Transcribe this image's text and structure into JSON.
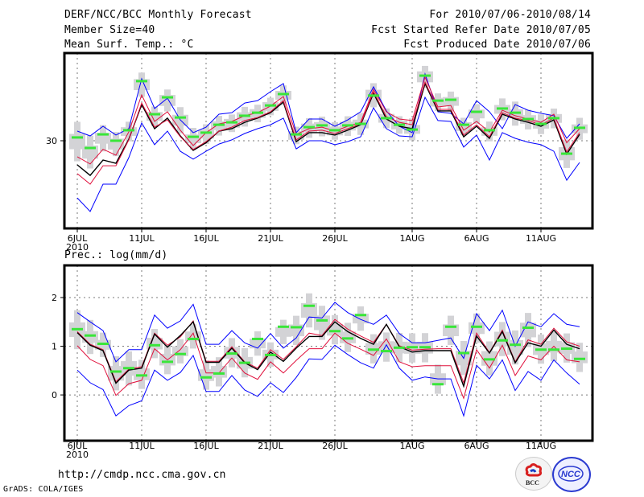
{
  "header": {
    "title": "DERF/NCC/BCC Monthly Forecast",
    "member_size": "Member Size=40",
    "var1_label": "Mean Surf. Temp.: °C",
    "period": "For 2010/07/06-2010/08/14",
    "started_date": "Fcst Started Refer Date 2010/07/05",
    "produced_date": "Fcst Produced Date 2010/07/06"
  },
  "footer": {
    "url": "http://cmdp.ncc.cma.gov.cn",
    "credit": "GrADS: COLA/IGES",
    "logos": [
      "BCC",
      "NCC"
    ]
  },
  "colors": {
    "envelope_outer": "#0000ff",
    "envelope_inner": "#e0103c",
    "ensemble_mean": "#000000",
    "observation": "#39e639",
    "spread_box": "#d3d3d6",
    "grid": "#7a7a7a"
  },
  "chart_data": [
    {
      "type": "line",
      "title": "Mean Surf. Temp.: °C",
      "xlabel": "",
      "ylabel": "°C",
      "x_tick_labels": [
        "6JUL",
        "11JUL",
        "16JUL",
        "21JUL",
        "26JUL",
        "1AUG",
        "6AUG",
        "11AUG"
      ],
      "x_tick_day_index": [
        0,
        5,
        10,
        15,
        20,
        26,
        31,
        36
      ],
      "x_year_label": "2010",
      "y_tick_labels": [
        "30"
      ],
      "y_ticks": [
        30
      ],
      "ylim": [
        26,
        34
      ],
      "grid": true,
      "n_days": 40,
      "series": [
        {
          "name": "max",
          "role": "envelope_outer_upper",
          "values": [
            30.44,
            30.22,
            30.66,
            30.26,
            30.55,
            32.83,
            31.47,
            31.94,
            30.95,
            30.37,
            30.62,
            31.21,
            31.28,
            31.72,
            31.83,
            32.24,
            32.61,
            30.37,
            30.99,
            30.99,
            30.66,
            30.95,
            31.32,
            32.46,
            31.36,
            30.66,
            30.37,
            33.05,
            31.32,
            31.25,
            30.77,
            31.83,
            31.32,
            30.55,
            31.65,
            31.39,
            31.25,
            31.14,
            30.11,
            30.77
          ]
        },
        {
          "name": "upper_quantile",
          "role": "envelope_inner_upper",
          "values": [
            29.27,
            28.94,
            29.61,
            29.34,
            30.4,
            32.09,
            30.88,
            31.32,
            30.48,
            29.78,
            30.37,
            30.77,
            30.88,
            31.14,
            31.28,
            31.58,
            32.02,
            30.29,
            30.55,
            30.62,
            30.44,
            30.66,
            30.84,
            32.35,
            31.32,
            30.99,
            30.92,
            32.9,
            31.54,
            31.61,
            30.48,
            30.88,
            30.4,
            31.39,
            31.14,
            30.99,
            30.84,
            31.21,
            29.91,
            30.55
          ]
        },
        {
          "name": "ensemble_mean",
          "role": "mean",
          "values": [
            28.9,
            28.42,
            29.12,
            28.97,
            30.07,
            31.65,
            30.55,
            31.03,
            30.22,
            29.56,
            29.91,
            30.44,
            30.55,
            30.84,
            31.03,
            31.28,
            31.76,
            29.96,
            30.37,
            30.37,
            30.26,
            30.48,
            30.73,
            32.17,
            30.99,
            30.66,
            30.55,
            32.61,
            31.36,
            31.36,
            30.18,
            30.66,
            30.11,
            31.21,
            30.99,
            30.84,
            30.66,
            30.95,
            29.39,
            30.29
          ]
        },
        {
          "name": "lower_quantile",
          "role": "envelope_inner_lower",
          "values": [
            28.5,
            28.02,
            28.86,
            28.86,
            30.04,
            31.72,
            30.62,
            30.95,
            30.18,
            29.6,
            29.96,
            30.44,
            30.62,
            30.92,
            31.06,
            31.32,
            31.83,
            30.04,
            30.44,
            30.48,
            30.33,
            30.55,
            30.77,
            32.24,
            31.1,
            30.84,
            30.73,
            32.68,
            31.43,
            31.43,
            30.26,
            30.73,
            30.18,
            31.28,
            31.03,
            30.92,
            30.73,
            31.03,
            29.49,
            30.37
          ]
        },
        {
          "name": "min",
          "role": "envelope_outer_lower",
          "values": [
            27.39,
            26.77,
            28.02,
            28.02,
            29.23,
            30.81,
            29.82,
            30.44,
            29.52,
            29.16,
            29.52,
            29.85,
            30.04,
            30.33,
            30.55,
            30.73,
            31.03,
            29.63,
            30.0,
            30.0,
            29.82,
            29.96,
            30.18,
            31.5,
            30.55,
            30.22,
            30.18,
            31.98,
            30.92,
            30.88,
            29.71,
            30.26,
            29.12,
            30.37,
            30.11,
            29.93,
            29.82,
            29.52,
            28.2,
            29.01
          ]
        },
        {
          "name": "observation",
          "role": "observation",
          "values": [
            30.15,
            29.67,
            30.29,
            30.0,
            30.48,
            32.72,
            31.21,
            31.98,
            31.06,
            30.18,
            30.37,
            30.73,
            30.84,
            31.14,
            31.28,
            31.61,
            32.13,
            30.29,
            30.62,
            30.7,
            30.48,
            30.7,
            30.77,
            32.06,
            31.03,
            30.73,
            30.51,
            32.97,
            31.83,
            31.87,
            30.73,
            31.32,
            30.48,
            31.47,
            31.28,
            30.99,
            30.77,
            31.03,
            29.41,
            30.59
          ]
        }
      ],
      "spread_box": {
        "outer_half_width": [
          0.9,
          0.75,
          0.6,
          0.55,
          0.45,
          0.55,
          0.45,
          0.5,
          0.6,
          0.5,
          0.45,
          0.45,
          0.4,
          0.45,
          0.4,
          0.4,
          0.45,
          0.4,
          0.45,
          0.45,
          0.4,
          0.45,
          0.5,
          0.55,
          0.45,
          0.4,
          0.5,
          0.5,
          0.4,
          0.45,
          0.4,
          0.45,
          0.45,
          0.5,
          0.55,
          0.45,
          0.45,
          0.45,
          0.65,
          0.5
        ],
        "inner_half_width": [
          0.35,
          0.3,
          0.25,
          0.25,
          0.2,
          0.25,
          0.2,
          0.25,
          0.25,
          0.2,
          0.2,
          0.2,
          0.2,
          0.2,
          0.2,
          0.2,
          0.2,
          0.2,
          0.2,
          0.2,
          0.2,
          0.2,
          0.2,
          0.25,
          0.2,
          0.2,
          0.2,
          0.25,
          0.2,
          0.2,
          0.2,
          0.2,
          0.2,
          0.2,
          0.2,
          0.2,
          0.2,
          0.2,
          0.3,
          0.2
        ]
      }
    },
    {
      "type": "line",
      "title": "Prec.: log(mm/d)",
      "xlabel": "",
      "ylabel": "log(mm/d)",
      "x_tick_labels": [
        "6JUL",
        "11JUL",
        "16JUL",
        "21JUL",
        "26JUL",
        "1AUG",
        "6AUG",
        "11AUG"
      ],
      "x_tick_day_index": [
        0,
        5,
        10,
        15,
        20,
        26,
        31,
        36
      ],
      "x_year_label": "2010",
      "y_tick_labels": [
        "0",
        "1",
        "2"
      ],
      "y_ticks": [
        0,
        1,
        2
      ],
      "ylim": [
        -0.94,
        2.66
      ],
      "grid": true,
      "n_days": 40,
      "series": [
        {
          "name": "max",
          "role": "envelope_outer_upper",
          "values": [
            1.69,
            1.5,
            1.32,
            0.68,
            0.93,
            0.93,
            1.64,
            1.37,
            1.52,
            1.86,
            1.04,
            1.04,
            1.32,
            1.07,
            0.96,
            1.26,
            0.96,
            1.17,
            1.6,
            1.58,
            1.9,
            1.69,
            1.55,
            1.45,
            1.64,
            1.26,
            1.07,
            1.07,
            1.12,
            1.17,
            0.75,
            1.67,
            1.32,
            1.74,
            1.0,
            1.5,
            1.4,
            1.67,
            1.45,
            1.4
          ]
        },
        {
          "name": "upper_quantile",
          "role": "envelope_inner_upper",
          "values": [
            1.3,
            1.04,
            0.93,
            0.27,
            0.53,
            0.58,
            1.27,
            1.02,
            1.19,
            1.52,
            0.69,
            0.69,
            0.99,
            0.68,
            0.55,
            0.93,
            0.73,
            0.99,
            1.27,
            1.22,
            1.55,
            1.35,
            1.21,
            1.08,
            1.45,
            1.01,
            0.92,
            0.94,
            0.95,
            0.95,
            0.25,
            1.27,
            0.87,
            1.33,
            0.68,
            1.13,
            1.04,
            1.37,
            1.09,
            1.0
          ]
        },
        {
          "name": "ensemble_mean",
          "role": "mean",
          "values": [
            1.28,
            1.02,
            0.91,
            0.24,
            0.51,
            0.55,
            1.25,
            0.98,
            1.22,
            1.5,
            0.67,
            0.67,
            0.96,
            0.66,
            0.52,
            0.88,
            0.69,
            0.96,
            1.2,
            1.2,
            1.5,
            1.3,
            1.16,
            1.04,
            1.45,
            0.99,
            0.88,
            0.91,
            0.91,
            0.91,
            0.18,
            1.21,
            0.86,
            1.3,
            0.66,
            1.07,
            1.0,
            1.33,
            1.04,
            0.95
          ]
        },
        {
          "name": "lower_quantile",
          "role": "envelope_inner_lower",
          "values": [
            1.01,
            0.73,
            0.6,
            -0.01,
            0.23,
            0.3,
            0.95,
            0.72,
            0.93,
            1.27,
            0.45,
            0.45,
            0.76,
            0.45,
            0.32,
            0.68,
            0.45,
            0.71,
            0.95,
            0.95,
            1.27,
            1.06,
            0.94,
            0.81,
            1.15,
            0.68,
            0.58,
            0.6,
            0.6,
            0.6,
            -0.07,
            0.93,
            0.55,
            1.02,
            0.4,
            0.8,
            0.72,
            1.0,
            0.72,
            0.68
          ]
        },
        {
          "name": "min",
          "role": "envelope_outer_lower",
          "values": [
            0.51,
            0.25,
            0.11,
            -0.43,
            -0.22,
            -0.12,
            0.51,
            0.3,
            0.46,
            0.81,
            0.07,
            0.07,
            0.4,
            0.1,
            -0.03,
            0.25,
            0.05,
            0.36,
            0.74,
            0.73,
            1.02,
            0.83,
            0.66,
            0.55,
            1.03,
            0.55,
            0.3,
            0.37,
            0.33,
            0.33,
            -0.43,
            0.61,
            0.33,
            0.72,
            0.09,
            0.48,
            0.3,
            0.72,
            0.45,
            0.22
          ]
        },
        {
          "name": "observation",
          "role": "observation",
          "values": [
            1.35,
            1.22,
            1.05,
            0.48,
            0.55,
            0.4,
            1.02,
            0.68,
            0.84,
            1.15,
            0.36,
            0.44,
            0.85,
            0.66,
            1.15,
            0.82,
            1.4,
            1.39,
            1.83,
            1.53,
            1.31,
            1.16,
            1.64,
            0.93,
            0.9,
            0.97,
            0.98,
            0.98,
            0.22,
            1.4,
            0.86,
            1.4,
            0.73,
            1.12,
            1.03,
            1.38,
            0.93,
            0.93,
            0.95,
            0.74
          ]
        }
      ],
      "spread_box": {
        "outer_half_width": [
          0.4,
          0.35,
          0.25,
          0.35,
          0.35,
          0.3,
          0.3,
          0.3,
          0.25,
          0.25,
          0.3,
          0.3,
          0.3,
          0.3,
          0.25,
          0.25,
          0.25,
          0.3,
          0.35,
          0.35,
          0.3,
          0.3,
          0.25,
          0.3,
          0.3,
          0.3,
          0.3,
          0.3,
          0.3,
          0.3,
          0.35,
          0.3,
          0.35,
          0.35,
          0.35,
          0.35,
          0.3,
          0.3,
          0.3,
          0.3
        ],
        "inner_half_width": [
          0.15,
          0.12,
          0.1,
          0.15,
          0.15,
          0.12,
          0.12,
          0.12,
          0.1,
          0.1,
          0.12,
          0.12,
          0.12,
          0.12,
          0.1,
          0.1,
          0.1,
          0.12,
          0.15,
          0.15,
          0.12,
          0.12,
          0.1,
          0.12,
          0.12,
          0.12,
          0.12,
          0.12,
          0.12,
          0.12,
          0.15,
          0.12,
          0.15,
          0.15,
          0.15,
          0.15,
          0.12,
          0.12,
          0.12,
          0.12
        ]
      }
    }
  ]
}
